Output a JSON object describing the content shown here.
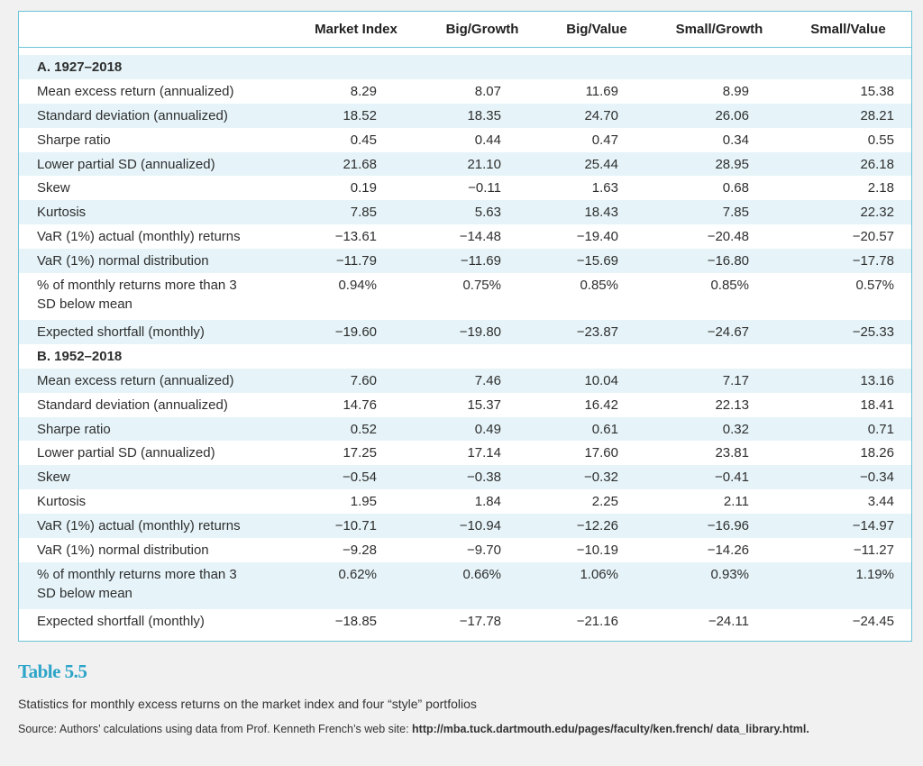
{
  "columns": [
    "Market Index",
    "Big/Growth",
    "Big/Value",
    "Small/Growth",
    "Small/Value"
  ],
  "sections": [
    {
      "title": "A. 1927–2018",
      "rows": [
        {
          "label": "Mean excess return (annualized)",
          "values": [
            "8.29",
            "8.07",
            "11.69",
            "8.99",
            "15.38"
          ]
        },
        {
          "label": "Standard deviation (annualized)",
          "values": [
            "18.52",
            "18.35",
            "24.70",
            "26.06",
            "28.21"
          ]
        },
        {
          "label": "Sharpe ratio",
          "values": [
            "0.45",
            "0.44",
            "0.47",
            "0.34",
            "0.55"
          ]
        },
        {
          "label": "Lower partial SD (annualized)",
          "values": [
            "21.68",
            "21.10",
            "25.44",
            "28.95",
            "26.18"
          ]
        },
        {
          "label": "Skew",
          "values": [
            "0.19",
            "−0.11",
            "1.63",
            "0.68",
            "2.18"
          ]
        },
        {
          "label": "Kurtosis",
          "values": [
            "7.85",
            "5.63",
            "18.43",
            "7.85",
            "22.32"
          ]
        },
        {
          "label": "VaR (1%) actual (monthly) returns",
          "values": [
            "−13.61",
            "−14.48",
            "−19.40",
            "−20.48",
            "−20.57"
          ]
        },
        {
          "label": "VaR (1%) normal distribution",
          "values": [
            "−11.79",
            "−11.69",
            "−15.69",
            "−16.80",
            "−17.78"
          ]
        },
        {
          "label": "% of monthly returns more than 3",
          "label2": "SD below mean",
          "values": [
            "0.94%",
            "0.75%",
            "0.85%",
            "0.85%",
            "0.57%"
          ]
        },
        {
          "label": "Expected shortfall (monthly)",
          "values": [
            "−19.60",
            "−19.80",
            "−23.87",
            "−24.67",
            "−25.33"
          ]
        }
      ]
    },
    {
      "title": "B. 1952–2018",
      "rows": [
        {
          "label": "Mean excess return (annualized)",
          "values": [
            "7.60",
            "7.46",
            "10.04",
            "7.17",
            "13.16"
          ]
        },
        {
          "label": "Standard deviation (annualized)",
          "values": [
            "14.76",
            "15.37",
            "16.42",
            "22.13",
            "18.41"
          ]
        },
        {
          "label": "Sharpe ratio",
          "values": [
            "0.52",
            "0.49",
            "0.61",
            "0.32",
            "0.71"
          ]
        },
        {
          "label": "Lower partial SD (annualized)",
          "values": [
            "17.25",
            "17.14",
            "17.60",
            "23.81",
            "18.26"
          ]
        },
        {
          "label": "Skew",
          "values": [
            "−0.54",
            "−0.38",
            "−0.32",
            "−0.41",
            "−0.34"
          ]
        },
        {
          "label": "Kurtosis",
          "values": [
            "1.95",
            "1.84",
            "2.25",
            "2.11",
            "3.44"
          ]
        },
        {
          "label": "VaR (1%) actual (monthly) returns",
          "values": [
            "−10.71",
            "−10.94",
            "−12.26",
            "−16.96",
            "−14.97"
          ]
        },
        {
          "label": "VaR (1%) normal distribution",
          "values": [
            "−9.28",
            "−9.70",
            "−10.19",
            "−14.26",
            "−11.27"
          ]
        },
        {
          "label": "% of monthly returns more than 3",
          "label2": "SD below mean",
          "values": [
            "0.62%",
            "0.66%",
            "1.06%",
            "0.93%",
            "1.19%"
          ]
        },
        {
          "label": "Expected shortfall (monthly)",
          "values": [
            "−18.85",
            "−17.78",
            "−21.16",
            "−24.11",
            "−24.45"
          ]
        }
      ]
    }
  ],
  "caption": {
    "title": "Table 5.5",
    "description": "Statistics for monthly excess returns on the market index and four “style” portfolios",
    "source_prefix": "Source: Authors’ calculations using data from Prof. Kenneth French’s web site: ",
    "source_url": "http://mba.tuck.dartmouth.edu/pages/faculty/ken.french/ data_library.html."
  },
  "colors": {
    "accent": "#2ba4c8",
    "border": "#6cc3d6",
    "stripe": "#e6f4f9"
  }
}
